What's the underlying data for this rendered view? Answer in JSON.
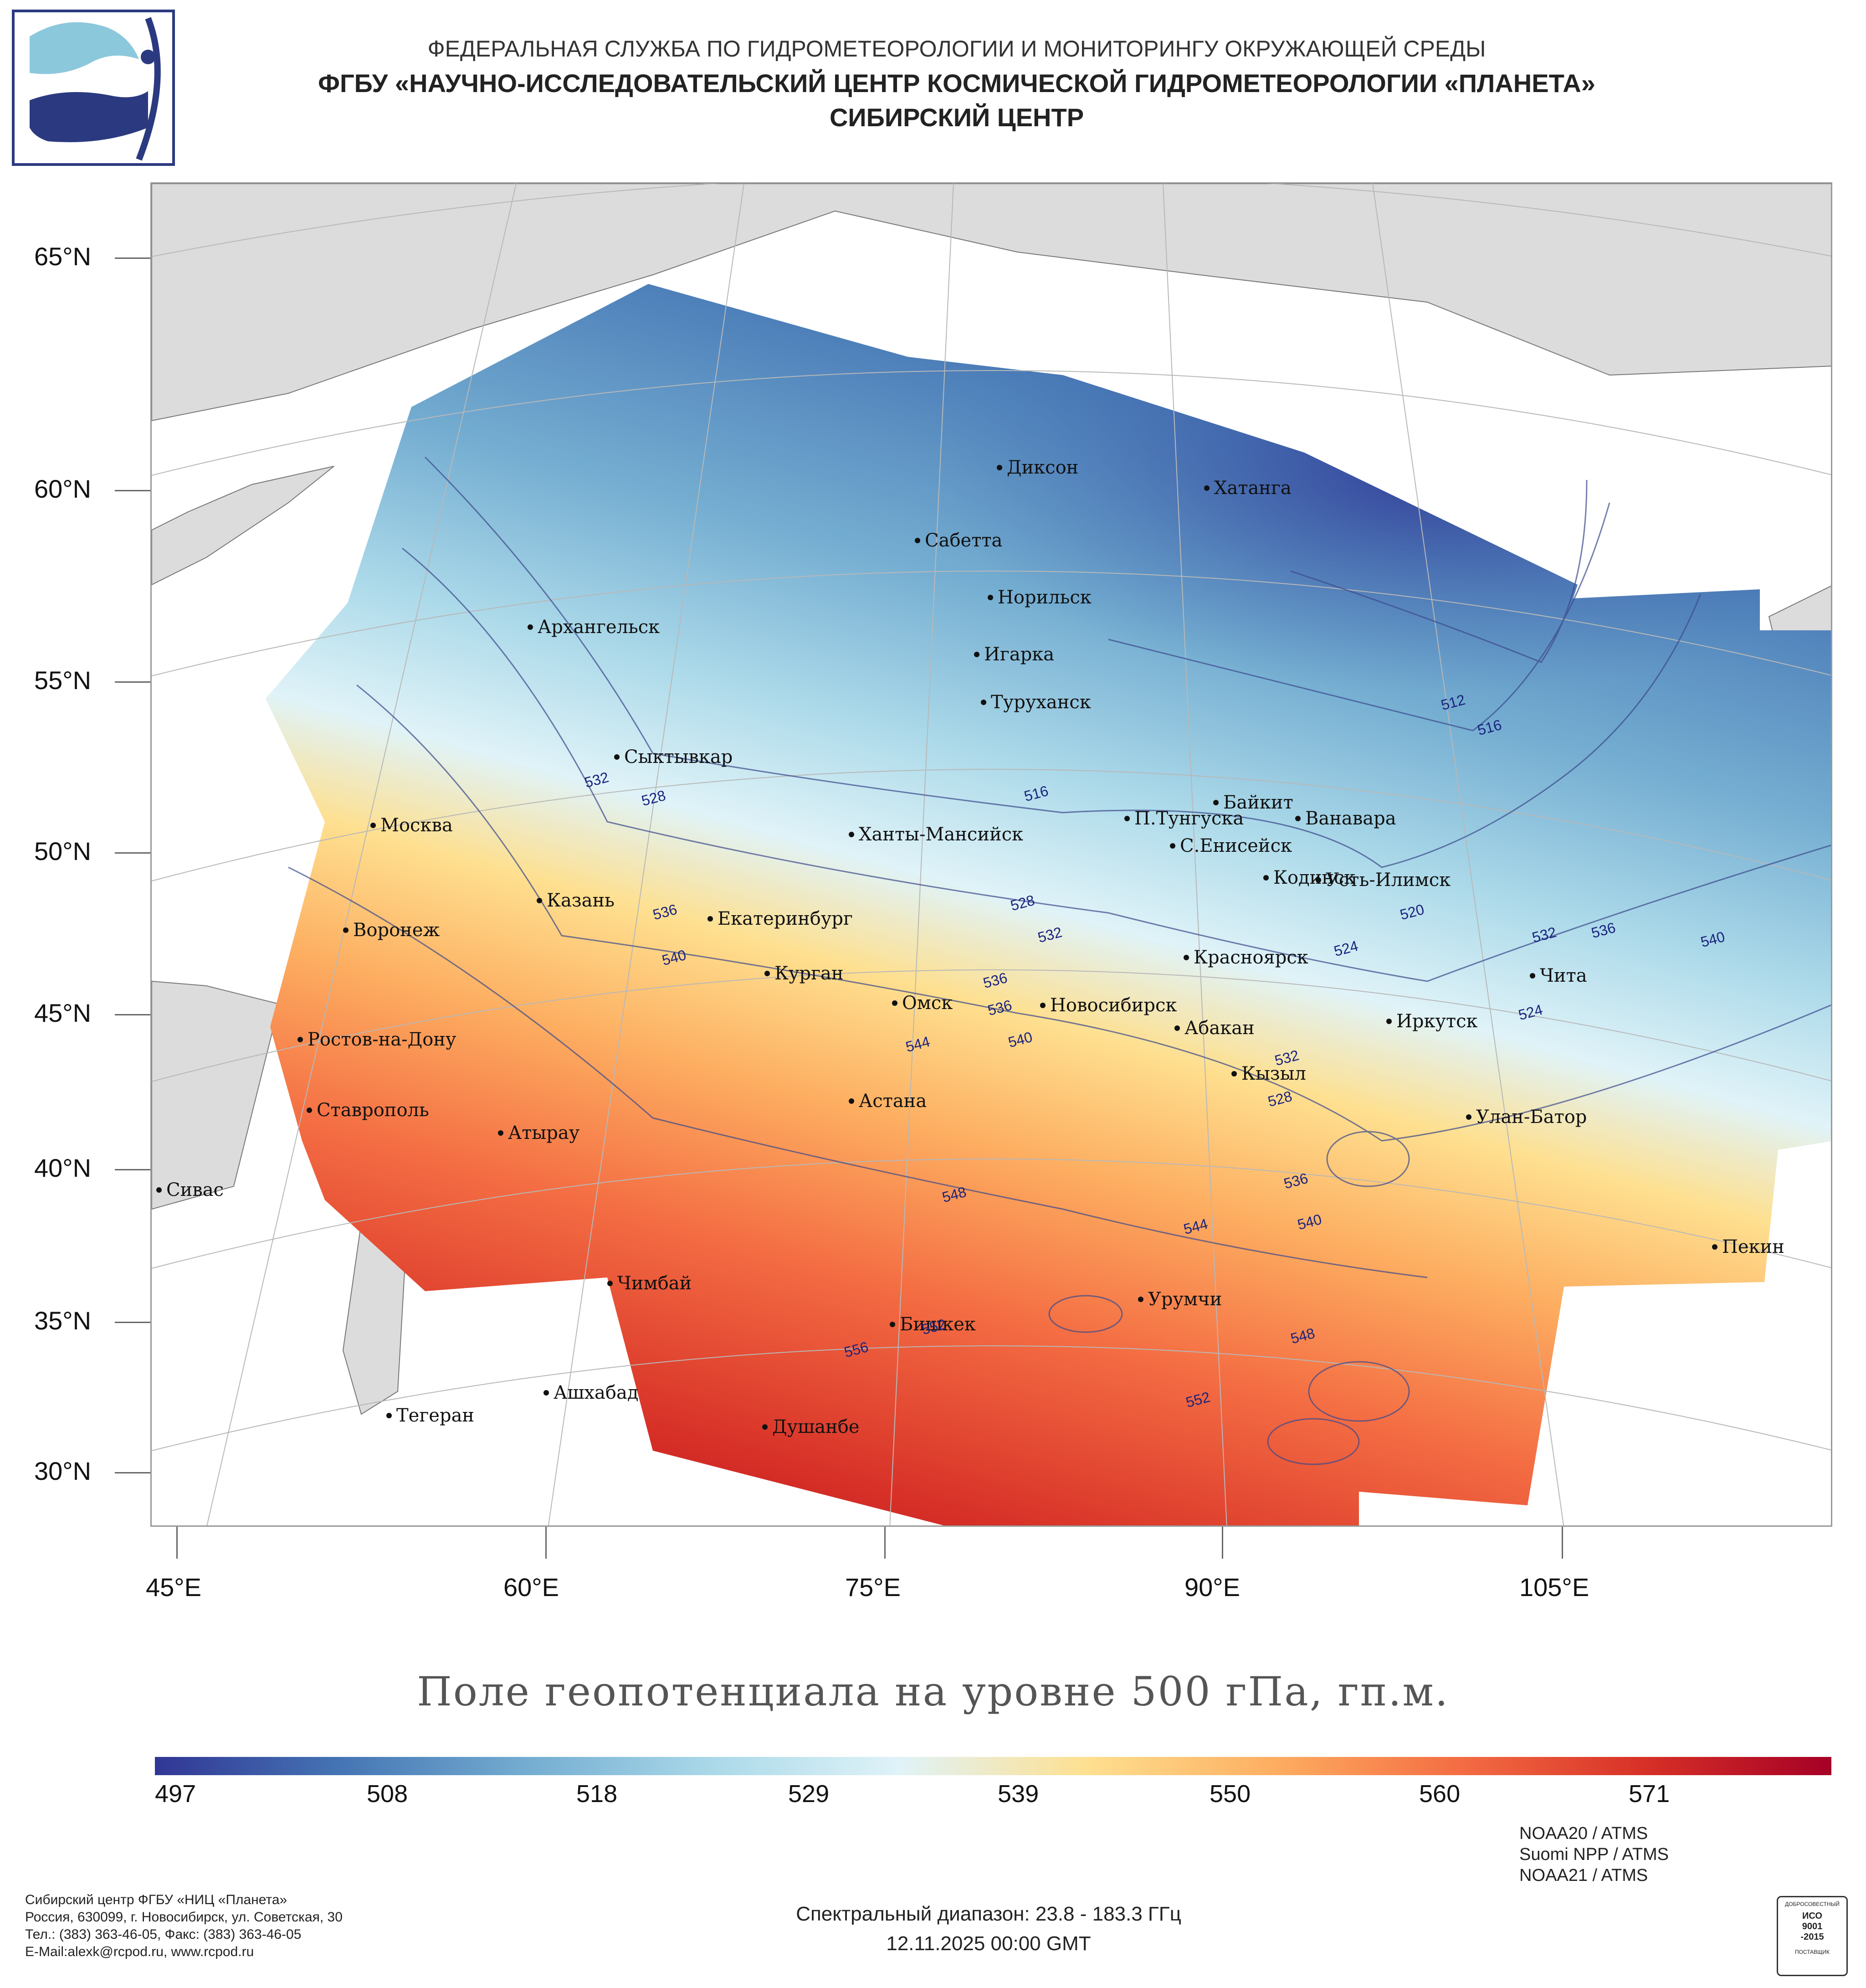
{
  "header": {
    "line1": "ФЕДЕРАЛЬНАЯ СЛУЖБА ПО ГИДРОМЕТЕОРОЛОГИИ И МОНИТОРИНГУ ОКРУЖАЮЩЕЙ СРЕДЫ",
    "line2": "ФГБУ «НАУЧНО-ИССЛЕДОВАТЕЛЬСКИЙ ЦЕНТР КОСМИЧЕСКОЙ ГИДРОМЕТЕОРОЛОГИИ «ПЛАНЕТА»",
    "line3": "СИБИРСКИЙ ЦЕНТР"
  },
  "axes": {
    "lat_labels": [
      "65°N",
      "60°N",
      "55°N",
      "50°N",
      "45°N",
      "40°N",
      "35°N",
      "30°N"
    ],
    "lon_labels": [
      "45°E",
      "60°E",
      "75°E",
      "90°E",
      "105°E"
    ]
  },
  "cities": [
    {
      "name": "Диксон"
    },
    {
      "name": "Хатанга"
    },
    {
      "name": "Сабетта"
    },
    {
      "name": "Норильск"
    },
    {
      "name": "Архангельск"
    },
    {
      "name": "Игарка"
    },
    {
      "name": "Туруханск"
    },
    {
      "name": "Сыктывкар"
    },
    {
      "name": "Байкит"
    },
    {
      "name": "П.Тунгуска"
    },
    {
      "name": "Ванавара"
    },
    {
      "name": "Москва"
    },
    {
      "name": "Ханты-Мансийск"
    },
    {
      "name": "С.Енисейск"
    },
    {
      "name": "Кодинск"
    },
    {
      "name": "Усть-Илимск"
    },
    {
      "name": "Казань"
    },
    {
      "name": "Екатеринбург"
    },
    {
      "name": "Воронеж"
    },
    {
      "name": "Красноярск"
    },
    {
      "name": "Курган"
    },
    {
      "name": "Чита"
    },
    {
      "name": "Омск"
    },
    {
      "name": "Новосибирск"
    },
    {
      "name": "Иркутск"
    },
    {
      "name": "Ростов-на-Дону"
    },
    {
      "name": "Абакан"
    },
    {
      "name": "Кызыл"
    },
    {
      "name": "Ставрополь"
    },
    {
      "name": "Астана"
    },
    {
      "name": "Улан-Батор"
    },
    {
      "name": "Атырау"
    },
    {
      "name": "Сивас"
    },
    {
      "name": "Пекин"
    },
    {
      "name": "Чимбай"
    },
    {
      "name": "Урумчи"
    },
    {
      "name": "Бишкек"
    },
    {
      "name": "Ашхабад"
    },
    {
      "name": "Тегеран"
    },
    {
      "name": "Душанбе"
    }
  ],
  "contour_labels": [
    "532",
    "528",
    "516",
    "512",
    "516",
    "524",
    "536",
    "528",
    "532",
    "520",
    "524",
    "536",
    "540",
    "532",
    "536",
    "540",
    "536",
    "540",
    "544",
    "532",
    "528",
    "548",
    "536",
    "540",
    "544",
    "552",
    "556",
    "548",
    "552"
  ],
  "map_title": "Поле геопотенциала на уровне 500 гПа, гп.м.",
  "colorbar": {
    "labels": [
      "497",
      "508",
      "518",
      "529",
      "539",
      "550",
      "560",
      "571"
    ],
    "colors": [
      "#313695",
      "#4575b4",
      "#74add1",
      "#abd9e9",
      "#e0f3f8",
      "#fee090",
      "#fdae61",
      "#f46d43",
      "#d73027",
      "#a50026"
    ]
  },
  "footer": {
    "org_lines": [
      "Сибирский центр ФГБУ «НИЦ «Планета»",
      "Россия, 630099, г. Новосибирск, ул. Советская, 30",
      "Тел.: (383) 363-46-05, Факс: (383) 363-46-05",
      "E-Mail:alexk@rcpod.ru, www.rcpod.ru"
    ],
    "spectral": "Спектральный диапазон: 23.8 - 183.3 ГГц",
    "datetime": "12.11.2025 00:00 GMT",
    "satellites": [
      "NOAA20 / ATMS",
      "Suomi NPP / ATMS",
      "NOAA21 / ATMS"
    ],
    "iso_badge": [
      "ДОБРОСОВЕСТНЫЙ",
      "ИСО",
      "9001",
      "-2015",
      "ПОСТАВЩИК"
    ]
  }
}
